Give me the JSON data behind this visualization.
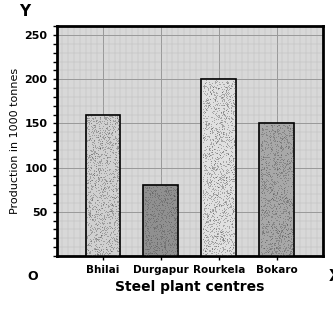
{
  "categories": [
    "Bhilai",
    "Durgapur",
    "Rourkela",
    "Bokaro"
  ],
  "values": [
    160,
    80,
    200,
    150
  ],
  "xlabel": "Steel plant centres",
  "ylabel": "Production in 1000 tonnes",
  "ylim": [
    0,
    260
  ],
  "yticks": [
    50,
    100,
    150,
    200,
    250
  ],
  "bar_colors": [
    "#d0d0d0",
    "#909090",
    "#e0e0e0",
    "#a8a8a8"
  ],
  "bar_edgecolor": "#000000",
  "background_color": "#d8d8d8",
  "grid_major_color": "#999999",
  "grid_minor_color": "#bbbbbb",
  "bar_width": 0.6,
  "spine_linewidth": 2.0,
  "tick_labelsize": 8,
  "xlabel_fontsize": 10,
  "ylabel_fontsize": 8
}
